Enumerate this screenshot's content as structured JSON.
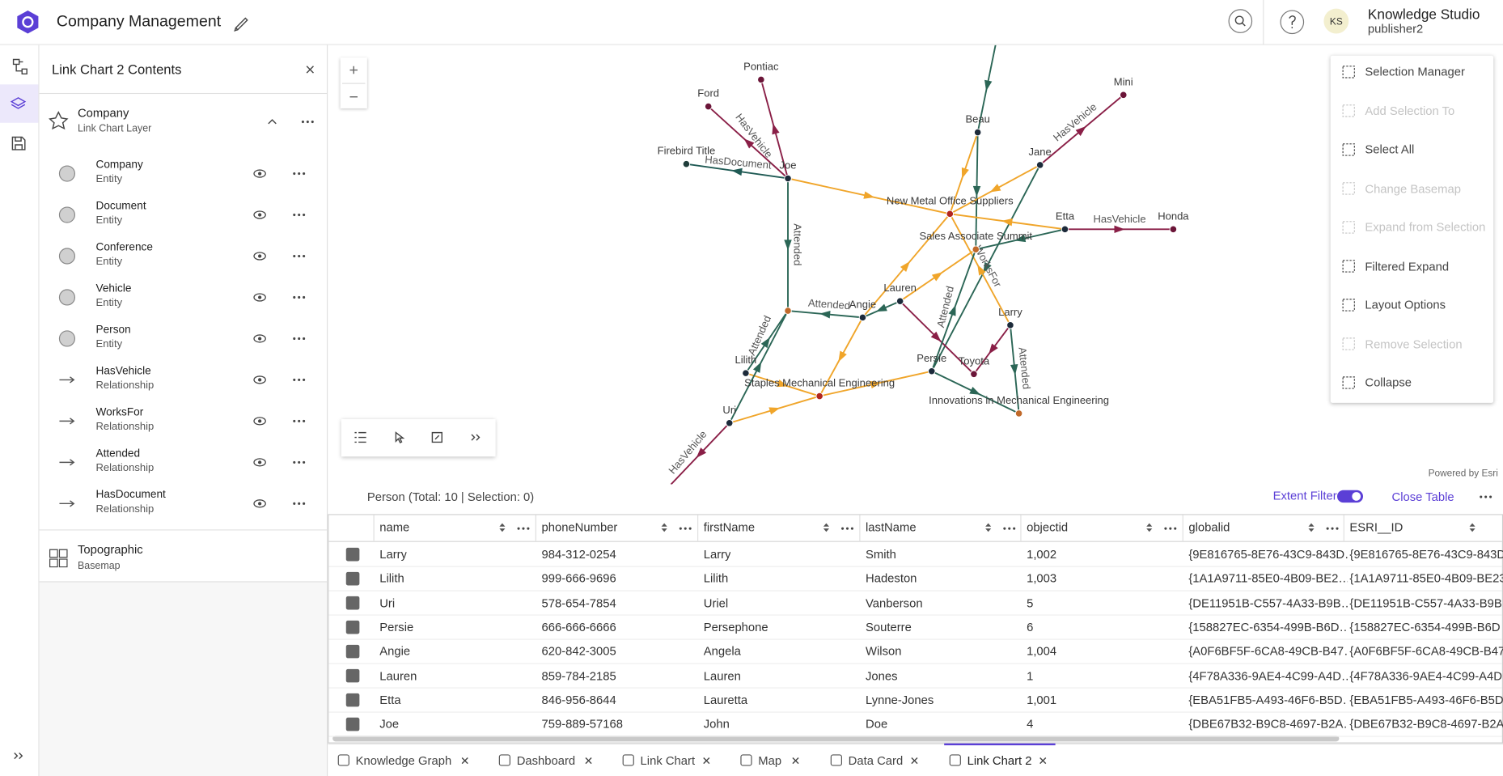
{
  "header": {
    "title": "Company Management",
    "user_initials": "KS",
    "user_name": "Knowledge Studio",
    "user_role": "publisher2"
  },
  "contents": {
    "title": "Link Chart 2 Contents",
    "layer": {
      "name": "Company",
      "type": "Link Chart Layer"
    },
    "items": [
      {
        "name": "Company",
        "type": "Entity"
      },
      {
        "name": "Document",
        "type": "Entity"
      },
      {
        "name": "Conference",
        "type": "Entity"
      },
      {
        "name": "Vehicle",
        "type": "Entity"
      },
      {
        "name": "Person",
        "type": "Entity"
      },
      {
        "name": "HasVehicle",
        "type": "Relationship"
      },
      {
        "name": "WorksFor",
        "type": "Relationship"
      },
      {
        "name": "Attended",
        "type": "Relationship"
      },
      {
        "name": "HasDocument",
        "type": "Relationship"
      }
    ],
    "basemap": {
      "name": "Topographic",
      "type": "Basemap"
    }
  },
  "graph": {
    "nodes": [
      {
        "label": "Pontiac",
        "color": "#6b1538"
      },
      {
        "label": "Ford",
        "color": "#6b1538"
      },
      {
        "label": "Firebird Title",
        "color": "#1f3d3a"
      },
      {
        "label": "Joe",
        "color": "#1c2a3a"
      },
      {
        "label": "Beau",
        "color": "#1c2a3a"
      },
      {
        "label": "Mini",
        "color": "#6b1538"
      },
      {
        "label": "Jane",
        "color": "#1c2a3a"
      },
      {
        "label": "New Metal Office Suppliers",
        "color": "#b3261e"
      },
      {
        "label": "Etta",
        "color": "#1c2a3a"
      },
      {
        "label": "Honda",
        "color": "#6b1538"
      },
      {
        "label": "Sales Associate Summit",
        "color": "#c0692a"
      },
      {
        "label": "Lauren",
        "color": "#1c2a3a"
      },
      {
        "label": "Angie",
        "color": "#1c2a3a"
      },
      {
        "label": null,
        "color": "#c0692a"
      },
      {
        "label": "Larry",
        "color": "#1c2a3a"
      },
      {
        "label": "Lilith",
        "color": "#1c2a3a"
      },
      {
        "label": "Persie",
        "color": "#1c2a3a"
      },
      {
        "label": "Toyota",
        "color": "#6b1538"
      },
      {
        "label": "Staples Mechanical Engineering",
        "color": "#b3261e"
      },
      {
        "label": "Innovations in Mechanical Engineering",
        "color": "#c0692a"
      },
      {
        "label": "Uri",
        "color": "#1c2a3a"
      }
    ],
    "edge_labels": [
      "HasVehicle",
      "HasDocument",
      "Attended",
      "HasVehicle",
      "HasVehicle",
      "WorksFor",
      "Attended",
      "Attended",
      "Attended",
      "Attended",
      "HasVehicle"
    ]
  },
  "menu": {
    "items": [
      {
        "label": "Selection Manager",
        "enabled": true
      },
      {
        "label": "Add Selection To",
        "enabled": false
      },
      {
        "label": "Select All",
        "enabled": true
      },
      {
        "label": "Change Basemap",
        "enabled": false
      },
      {
        "label": "Expand from Selection",
        "enabled": false
      },
      {
        "label": "Filtered Expand",
        "enabled": true
      },
      {
        "label": "Layout Options",
        "enabled": true
      },
      {
        "label": "Remove Selection",
        "enabled": false
      },
      {
        "label": "Collapse",
        "enabled": true
      }
    ]
  },
  "powered_by": "Powered by Esri",
  "table": {
    "caption": "Person (Total: 10 | Selection: 0)",
    "extent_filter": "Extent Filter",
    "close": "Close Table",
    "columns": [
      "name",
      "phoneNumber",
      "firstName",
      "lastName",
      "objectid",
      "globalid",
      "ESRI__ID"
    ],
    "rows": [
      [
        "Larry",
        "984-312-0254",
        "Larry",
        "Smith",
        "1,002",
        "{9E816765-8E76-43C9-843D…",
        "{9E816765-8E76-43C9-843D"
      ],
      [
        "Lilith",
        "999-666-9696",
        "Lilith",
        "Hadeston",
        "1,003",
        "{1A1A9711-85E0-4B09-BE2…",
        "{1A1A9711-85E0-4B09-BE23"
      ],
      [
        "Uri",
        "578-654-7854",
        "Uriel",
        "Vanberson",
        "5",
        "{DE11951B-C557-4A33-B9B…",
        "{DE11951B-C557-4A33-B9B"
      ],
      [
        "Persie",
        "666-666-6666",
        "Persephone",
        "Souterre",
        "6",
        "{158827EC-6354-499B-B6D…",
        "{158827EC-6354-499B-B6D"
      ],
      [
        "Angie",
        "620-842-3005",
        "Angela",
        "Wilson",
        "1,004",
        "{A0F6BF5F-6CA8-49CB-B47…",
        "{A0F6BF5F-6CA8-49CB-B47"
      ],
      [
        "Lauren",
        "859-784-2185",
        "Lauren",
        "Jones",
        "1",
        "{4F78A336-9AE4-4C99-A4D…",
        "{4F78A336-9AE4-4C99-A4D"
      ],
      [
        "Etta",
        "846-956-8644",
        "Lauretta",
        "Lynne-Jones",
        "1,001",
        "{EBA51FB5-A493-46F6-B5D…",
        "{EBA51FB5-A493-46F6-B5D"
      ],
      [
        "Joe",
        "759-889-57168",
        "John",
        "Doe",
        "4",
        "{DBE67B32-B9C8-4697-B2A…",
        "{DBE67B32-B9C8-4697-B2A"
      ]
    ]
  },
  "tabs": [
    "Knowledge Graph",
    "Dashboard",
    "Link Chart",
    "Map",
    "Data Card",
    "Link Chart 2"
  ],
  "active_tab": 5
}
